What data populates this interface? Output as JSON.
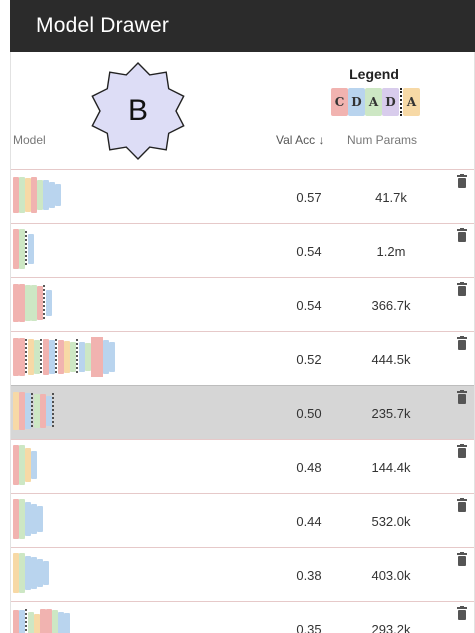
{
  "window": {
    "title": "Model Drawer"
  },
  "badge": {
    "label": "B"
  },
  "legend": {
    "title": "Legend",
    "letters": [
      "C",
      "D",
      "A",
      "D",
      "A"
    ],
    "colors": {
      "C": "#f1b3b0",
      "D": "#b9d4ee",
      "A": "#cde7c4",
      "A2": "#f7e3b5"
    }
  },
  "columns": {
    "model": "Model",
    "val_acc": "Val Acc ↓",
    "num_params": "Num Params"
  },
  "rows": [
    {
      "val_acc": "0.57",
      "num_params": "41.7k",
      "selected": false
    },
    {
      "val_acc": "0.54",
      "num_params": "1.2m",
      "selected": false
    },
    {
      "val_acc": "0.54",
      "num_params": "366.7k",
      "selected": false
    },
    {
      "val_acc": "0.52",
      "num_params": "444.5k",
      "selected": false
    },
    {
      "val_acc": "0.50",
      "num_params": "235.7k",
      "selected": true
    },
    {
      "val_acc": "0.48",
      "num_params": "144.4k",
      "selected": false
    },
    {
      "val_acc": "0.44",
      "num_params": "532.0k",
      "selected": false
    },
    {
      "val_acc": "0.38",
      "num_params": "403.0k",
      "selected": false
    },
    {
      "val_acc": "0.35",
      "num_params": "293.2k",
      "selected": false
    }
  ],
  "icons": {
    "delete": "trash-icon",
    "sort": "arrow-down-icon"
  }
}
